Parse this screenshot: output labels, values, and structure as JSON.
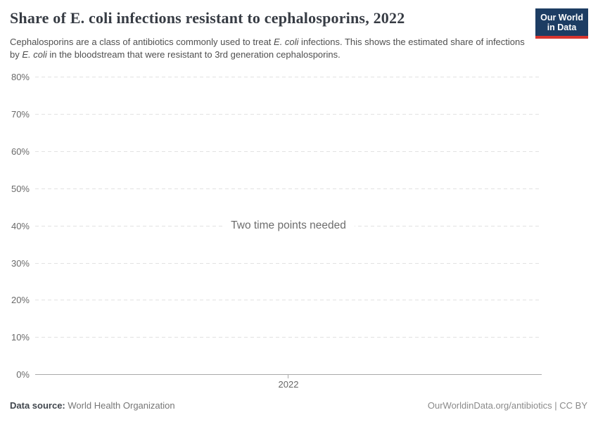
{
  "header": {
    "title": "Share of E. coli infections resistant to cephalosporins, 2022",
    "subtitle": {
      "p1": "Cephalosporins are a class of antibiotics commonly used to treat ",
      "i1": "E. coli",
      "p2": " infections. This shows the estimated share of infections by ",
      "i2": "E. coli",
      "p3": " in the bloodstream that were resistant to 3rd generation cephalosporins."
    },
    "logo": {
      "line1": "Our World",
      "line2": "in Data",
      "bg_color": "#1d3d63",
      "stripe_color": "#d8352e"
    }
  },
  "chart_data": {
    "type": "line",
    "title": "Share of E. coli infections resistant to cephalosporins, 2022",
    "x": [
      2022
    ],
    "series": [],
    "empty_message": "Two time points needed",
    "xlabel": "",
    "ylabel": "",
    "ylim": [
      0,
      80
    ],
    "yticks": [
      "80%",
      "70%",
      "60%",
      "50%",
      "40%",
      "30%",
      "20%",
      "10%",
      "0%"
    ],
    "xticks": [
      "2022"
    ],
    "grid": "horizontal-dashed",
    "legend": "none",
    "grid_color": "#e2e2e2",
    "axis_color": "#a9a9a9",
    "tick_label_color": "#6a6a6a"
  },
  "footer": {
    "source_label": "Data source:",
    "source_value": "World Health Organization",
    "link": "OurWorldinData.org/antibiotics | CC BY"
  }
}
